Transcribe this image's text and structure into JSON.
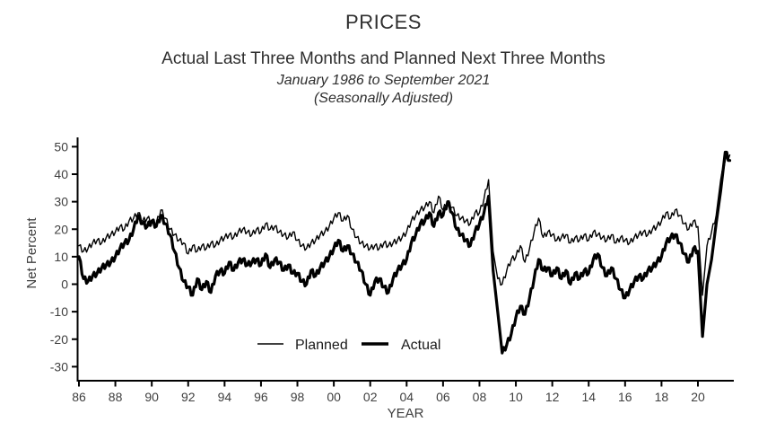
{
  "chart_data": {
    "type": "line",
    "title": "PRICES",
    "subtitle": "Actual Last Three Months and Planned Next Three Months",
    "date_range": "January 1986 to September 2021",
    "adjustment_note": "(Seasonally Adjusted)",
    "xlabel": "YEAR",
    "ylabel": "Net Percent",
    "ylim": [
      -30,
      50
    ],
    "yticks": [
      50,
      40,
      30,
      20,
      10,
      0,
      -10,
      -20,
      -30
    ],
    "xtick_labels": [
      "86",
      "88",
      "90",
      "92",
      "94",
      "96",
      "98",
      "00",
      "02",
      "04",
      "06",
      "08",
      "10",
      "12",
      "14",
      "16",
      "18",
      "20"
    ],
    "xtick_years": [
      1986,
      1988,
      1990,
      1992,
      1994,
      1996,
      1998,
      2000,
      2002,
      2004,
      2006,
      2008,
      2010,
      2012,
      2014,
      2016,
      2018,
      2020
    ],
    "x_start": 1986.0,
    "x_step": 0.25,
    "x_unit": "year (quarterly estimates, Jan 1986 - Sep 2021)",
    "grid": false,
    "legend_position": "inside-bottom-center",
    "line_color": "#000000",
    "series": [
      {
        "name": "Planned",
        "style": "thin",
        "values": [
          14,
          12,
          13,
          15,
          16,
          15,
          17,
          18,
          19,
          21,
          20,
          23,
          24,
          26,
          23,
          24,
          23,
          22,
          27,
          24,
          20,
          18,
          16,
          15,
          11,
          14,
          12,
          14,
          13,
          15,
          14,
          16,
          17,
          18,
          17,
          19,
          20,
          19,
          18,
          20,
          19,
          22,
          20,
          21,
          19,
          18,
          17,
          19,
          16,
          14,
          13,
          15,
          16,
          18,
          19,
          21,
          24,
          26,
          23,
          25,
          20,
          17,
          15,
          14,
          13,
          14,
          13,
          15,
          14,
          15,
          16,
          17,
          19,
          23,
          25,
          27,
          28,
          30,
          26,
          32,
          27,
          30,
          28,
          25,
          24,
          23,
          22,
          26,
          26,
          31,
          38,
          12,
          2,
          0,
          5,
          9,
          10,
          14,
          8,
          13,
          19,
          24,
          17,
          19,
          18,
          16,
          17,
          18,
          15,
          17,
          16,
          18,
          16,
          19,
          18,
          17,
          16,
          18,
          15,
          17,
          16,
          15,
          17,
          18,
          19,
          18,
          20,
          21,
          23,
          26,
          24,
          27,
          25,
          22,
          20,
          23,
          21,
          -4,
          14,
          19,
          25,
          38,
          45,
          47
        ]
      },
      {
        "name": "Actual",
        "style": "thick",
        "values": [
          10,
          2,
          1,
          3,
          4,
          6,
          7,
          8,
          10,
          13,
          15,
          16,
          20,
          25,
          22,
          21,
          23,
          21,
          25,
          22,
          18,
          12,
          6,
          1,
          -1,
          -4,
          2,
          -2,
          1,
          -3,
          3,
          5,
          4,
          8,
          5,
          8,
          9,
          7,
          8,
          9,
          7,
          11,
          6,
          9,
          8,
          5,
          7,
          4,
          4,
          1,
          0,
          5,
          3,
          6,
          8,
          10,
          13,
          16,
          12,
          14,
          11,
          8,
          5,
          0,
          -4,
          1,
          2,
          -1,
          -3,
          2,
          5,
          7,
          9,
          15,
          18,
          22,
          23,
          26,
          21,
          26,
          25,
          30,
          26,
          20,
          18,
          16,
          14,
          19,
          22,
          26,
          32,
          5,
          -10,
          -25,
          -22,
          -18,
          -12,
          -8,
          -11,
          -5,
          2,
          9,
          5,
          6,
          3,
          6,
          2,
          5,
          0,
          4,
          2,
          5,
          4,
          9,
          11,
          6,
          3,
          6,
          2,
          -2,
          -5,
          -2,
          1,
          3,
          2,
          5,
          6,
          8,
          10,
          15,
          17,
          18,
          15,
          11,
          8,
          13,
          12,
          -19,
          0,
          9,
          22,
          34,
          48,
          45
        ]
      }
    ]
  }
}
